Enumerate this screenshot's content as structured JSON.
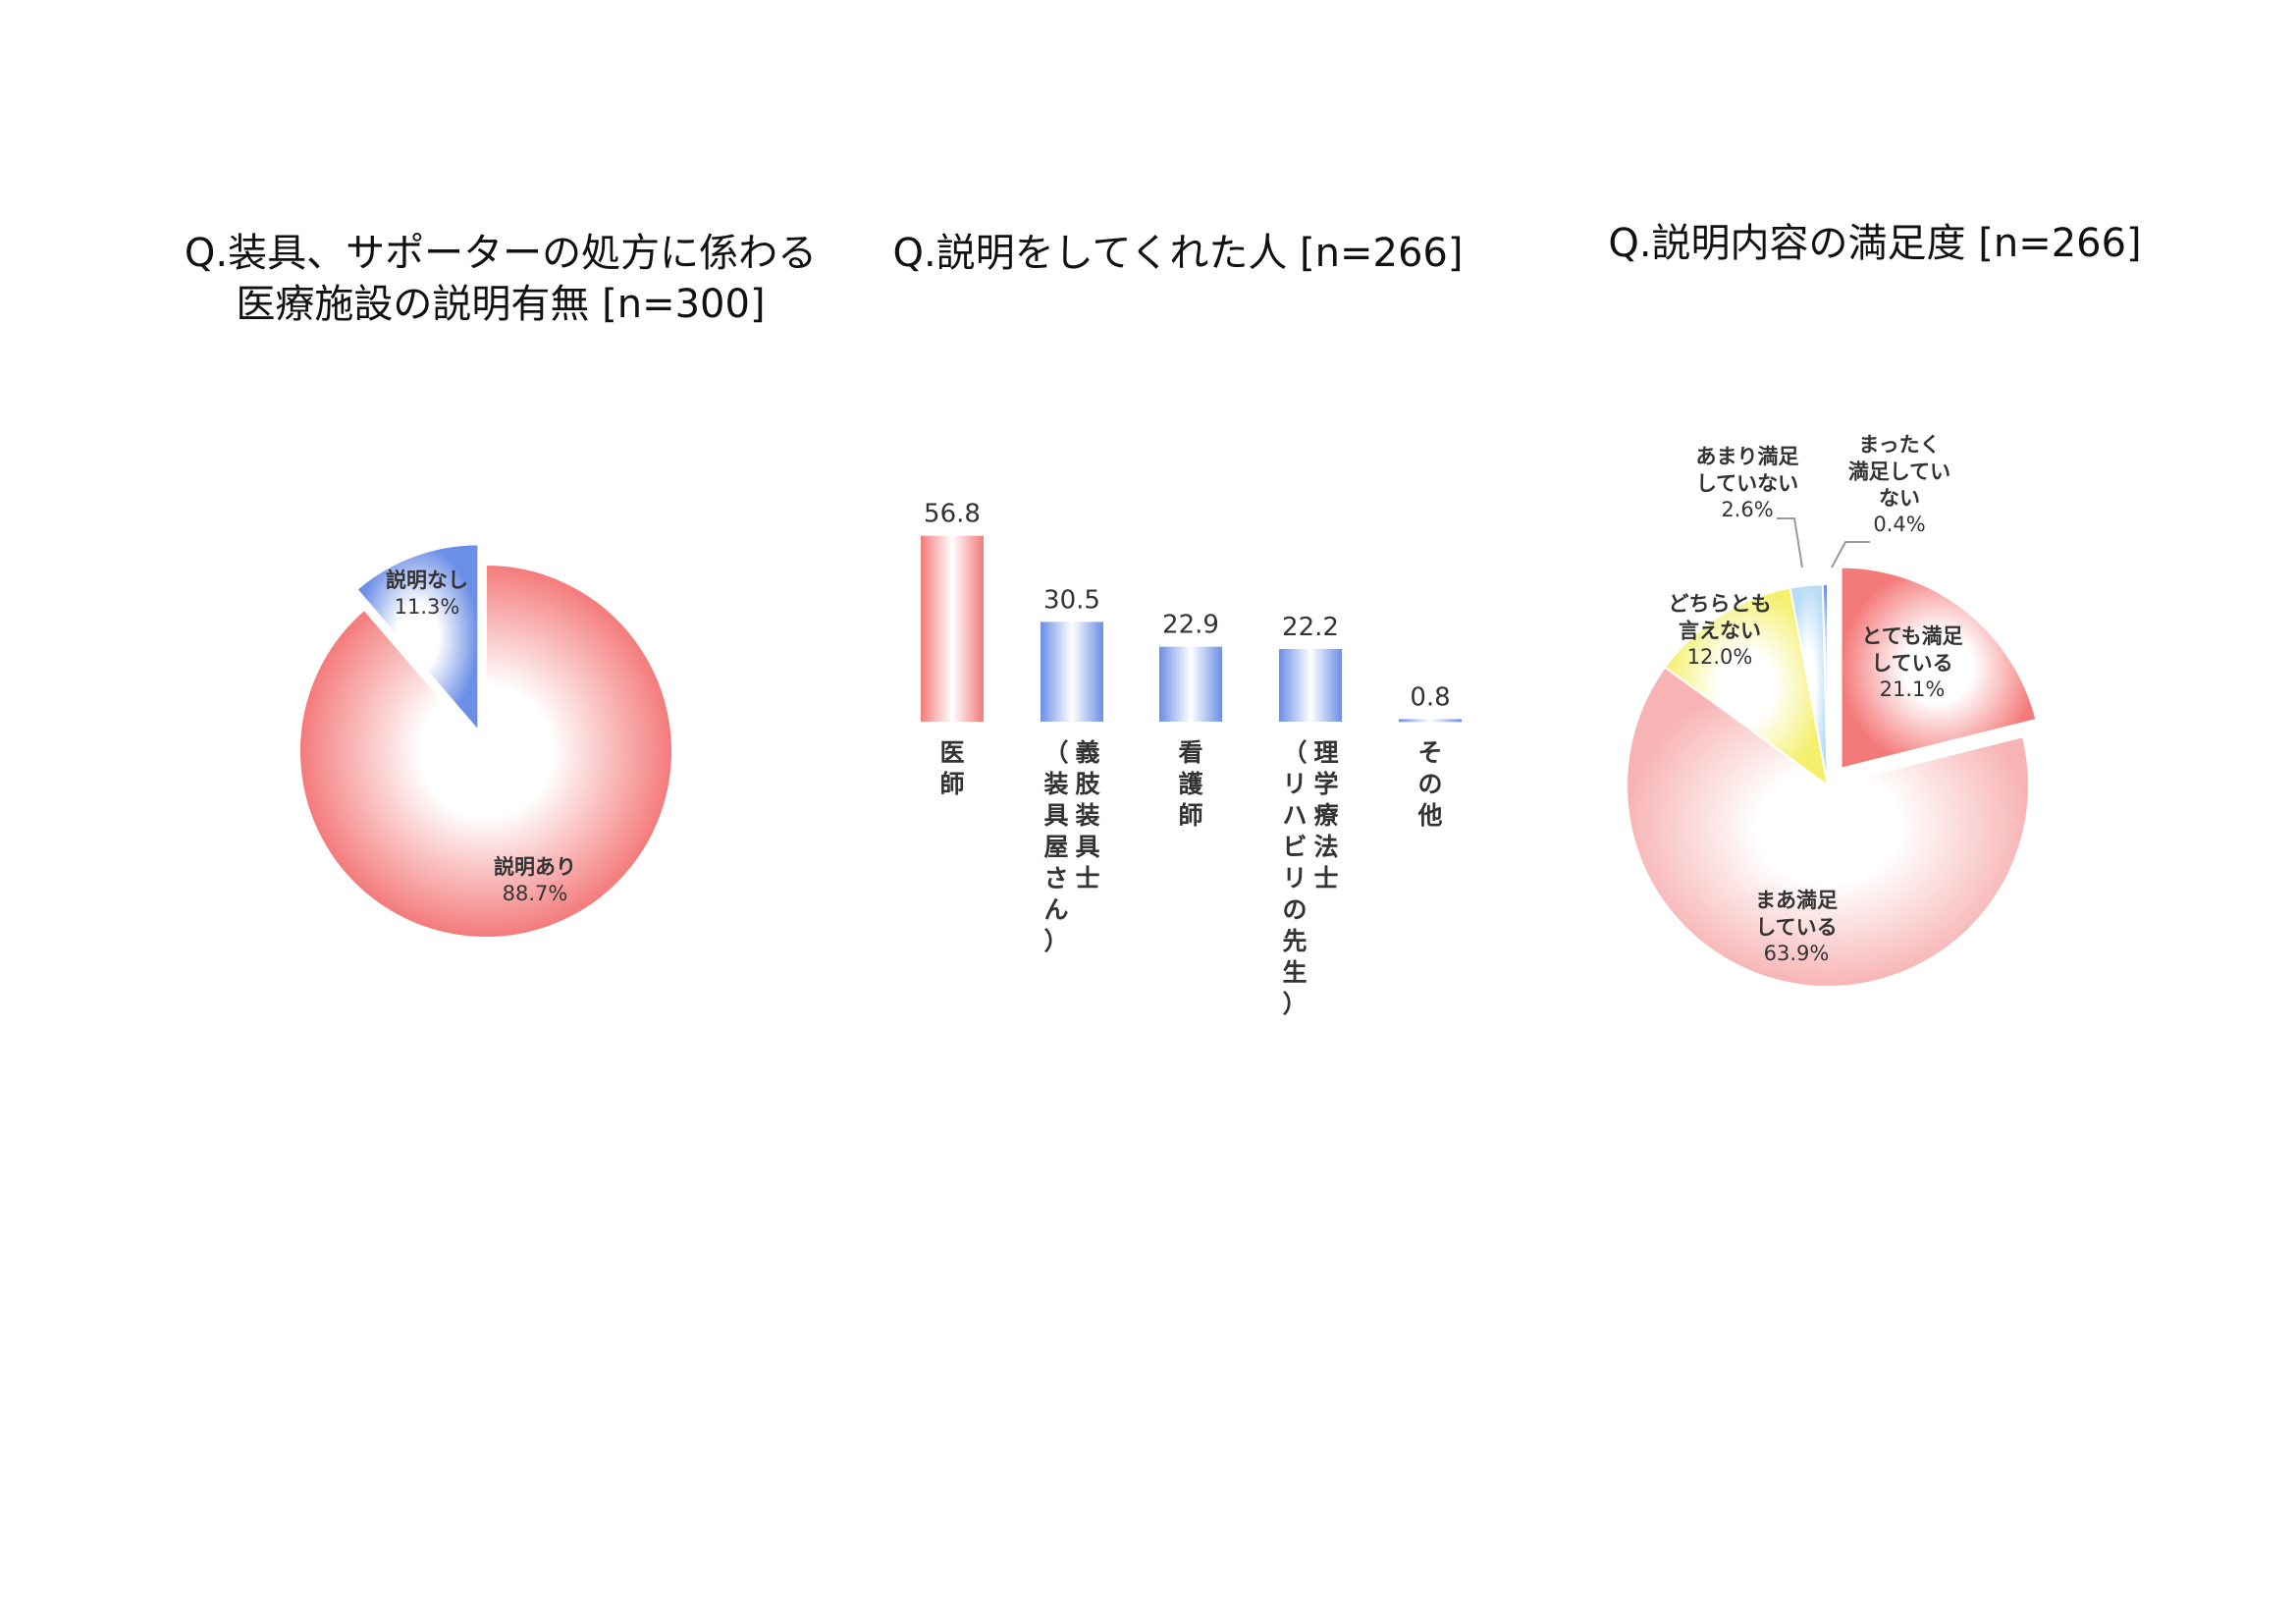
{
  "chart_data": [
    {
      "type": "pie",
      "title": "Q.装具、サポーターの処方に係わる 医療施設の説明有無 [n=300]",
      "title_lines": [
        "Q.装具、サポーターの処方に係わる",
        "医療施設の説明有無 [n=300]"
      ],
      "slices": [
        {
          "label_lines": [
            "説明なし"
          ],
          "pct_label": "11.3%",
          "value": 11.3,
          "color": "#6b8ee6",
          "exploded": true
        },
        {
          "label_lines": [
            "説明あり"
          ],
          "pct_label": "88.7%",
          "value": 88.7,
          "color": "#f47a7a",
          "exploded": false
        }
      ]
    },
    {
      "type": "bar",
      "title": "Q.説明をしてくれた人 [n=266]",
      "categories": [
        {
          "cols": [
            "医師"
          ]
        },
        {
          "cols": [
            "義肢装具士",
            "（装具屋さん）"
          ]
        },
        {
          "cols": [
            "看護師"
          ]
        },
        {
          "cols": [
            "理学療法士",
            "（リハビリの先生）"
          ]
        },
        {
          "cols": [
            "その他"
          ]
        }
      ],
      "values": [
        56.8,
        30.5,
        22.9,
        22.2,
        0.8
      ],
      "value_labels": [
        "56.8",
        "30.5",
        "22.9",
        "22.2",
        "0.8"
      ],
      "colors": [
        "#f47a7a",
        "#6b8ee6",
        "#6b8ee6",
        "#6b8ee6",
        "#6b8ee6"
      ],
      "ylim": [
        0,
        60
      ]
    },
    {
      "type": "pie",
      "title": "Q.説明内容の満足度 [n=266]",
      "title_lines": [
        "Q.説明内容の満足度 [n=266]"
      ],
      "slices": [
        {
          "label_lines": [
            "とても満足",
            "している"
          ],
          "pct_label": "21.1%",
          "value": 21.1,
          "color": "#f47a7a",
          "exploded": true
        },
        {
          "label_lines": [
            "まあ満足",
            "している"
          ],
          "pct_label": "63.9%",
          "value": 63.9,
          "color": "#f8b4b4",
          "exploded": false
        },
        {
          "label_lines": [
            "どちらとも",
            "言えない"
          ],
          "pct_label": "12.0%",
          "value": 12.0,
          "color": "#f4f06c",
          "exploded": false
        },
        {
          "label_lines": [
            "あまり満足",
            "していない"
          ],
          "pct_label": "2.6%",
          "value": 2.6,
          "color": "#b9dcf6",
          "exploded": false
        },
        {
          "label_lines": [
            "まったく",
            "満足してい",
            "ない"
          ],
          "pct_label": "0.4%",
          "value": 0.4,
          "color": "#6b8ee6",
          "exploded": false
        }
      ]
    }
  ]
}
